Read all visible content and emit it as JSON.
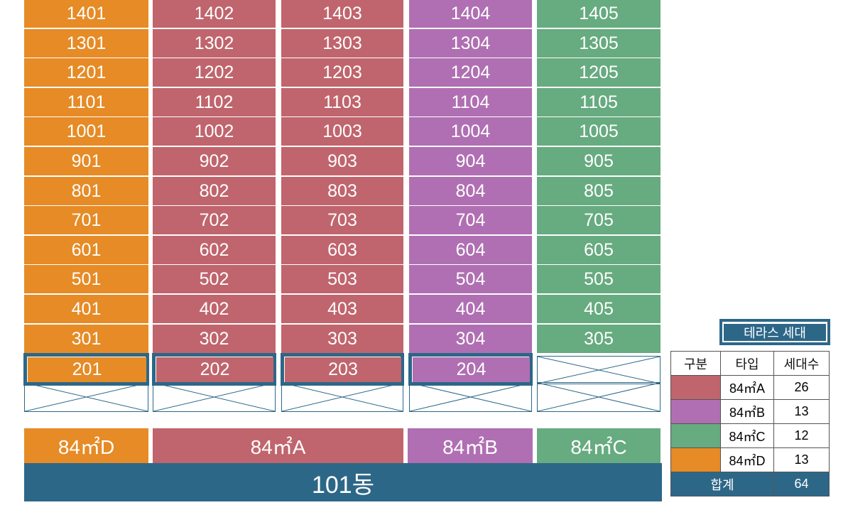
{
  "units": {
    "rows": [
      [
        "1401",
        "1402",
        "1403",
        "1404",
        "1405"
      ],
      [
        "1301",
        "1302",
        "1303",
        "1304",
        "1305"
      ],
      [
        "1201",
        "1202",
        "1203",
        "1204",
        "1205"
      ],
      [
        "1101",
        "1102",
        "1103",
        "1104",
        "1105"
      ],
      [
        "1001",
        "1002",
        "1003",
        "1004",
        "1005"
      ],
      [
        "901",
        "902",
        "903",
        "904",
        "905"
      ],
      [
        "801",
        "802",
        "803",
        "804",
        "805"
      ],
      [
        "701",
        "702",
        "703",
        "704",
        "705"
      ],
      [
        "601",
        "602",
        "603",
        "604",
        "605"
      ],
      [
        "501",
        "502",
        "503",
        "504",
        "505"
      ],
      [
        "401",
        "402",
        "403",
        "404",
        "405"
      ],
      [
        "301",
        "302",
        "303",
        "304",
        "305"
      ],
      [
        "201",
        "202",
        "203",
        "204",
        ""
      ]
    ],
    "column_colors": [
      "#e68b26",
      "#c0656d",
      "#c0656d",
      "#b06fb3",
      "#67ab80"
    ],
    "terrace_units": [
      "201",
      "202",
      "203",
      "204"
    ]
  },
  "type_labels": {
    "d": "84㎡D",
    "a": "84㎡A",
    "b": "84㎡B",
    "c": "84㎡C"
  },
  "building_name": "101동",
  "legend": {
    "terrace_title": "테라스 세대",
    "headers": [
      "구분",
      "타입",
      "세대수"
    ],
    "rows": [
      {
        "color": "#c0656d",
        "type": "84㎡A",
        "count": "26"
      },
      {
        "color": "#b06fb3",
        "type": "84㎡B",
        "count": "13"
      },
      {
        "color": "#67ab80",
        "type": "84㎡C",
        "count": "12"
      },
      {
        "color": "#e68b26",
        "type": "84㎡D",
        "count": "13"
      }
    ],
    "total_label": "합계",
    "total_count": "64"
  },
  "colors": {
    "accent": "#2d6788"
  }
}
